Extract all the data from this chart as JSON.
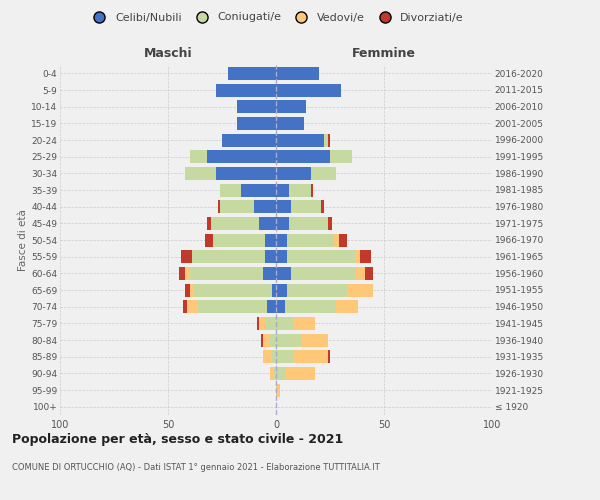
{
  "age_groups": [
    "100+",
    "95-99",
    "90-94",
    "85-89",
    "80-84",
    "75-79",
    "70-74",
    "65-69",
    "60-64",
    "55-59",
    "50-54",
    "45-49",
    "40-44",
    "35-39",
    "30-34",
    "25-29",
    "20-24",
    "15-19",
    "10-14",
    "5-9",
    "0-4"
  ],
  "birth_years": [
    "≤ 1920",
    "1921-1925",
    "1926-1930",
    "1931-1935",
    "1936-1940",
    "1941-1945",
    "1946-1950",
    "1951-1955",
    "1956-1960",
    "1961-1965",
    "1966-1970",
    "1971-1975",
    "1976-1980",
    "1981-1985",
    "1986-1990",
    "1991-1995",
    "1996-2000",
    "2001-2005",
    "2006-2010",
    "2011-2015",
    "2016-2020"
  ],
  "male_celibi": [
    0,
    0,
    0,
    0,
    0,
    0,
    4,
    2,
    6,
    5,
    5,
    8,
    10,
    16,
    28,
    32,
    25,
    18,
    18,
    28,
    22
  ],
  "male_coniugati": [
    0,
    0,
    1,
    2,
    3,
    5,
    32,
    36,
    34,
    34,
    24,
    22,
    16,
    10,
    14,
    8,
    0,
    0,
    0,
    0,
    0
  ],
  "male_vedovi": [
    0,
    0,
    2,
    4,
    3,
    3,
    5,
    2,
    2,
    0,
    0,
    0,
    0,
    0,
    0,
    0,
    0,
    0,
    0,
    0,
    0
  ],
  "male_divorziati": [
    0,
    0,
    0,
    0,
    1,
    1,
    2,
    2,
    3,
    5,
    4,
    2,
    1,
    0,
    0,
    0,
    0,
    0,
    0,
    0,
    0
  ],
  "female_celibi": [
    0,
    0,
    0,
    0,
    0,
    0,
    4,
    5,
    7,
    5,
    5,
    6,
    7,
    6,
    16,
    25,
    22,
    13,
    14,
    30,
    20
  ],
  "female_coniugati": [
    0,
    0,
    4,
    8,
    12,
    8,
    24,
    28,
    30,
    32,
    22,
    18,
    14,
    10,
    12,
    10,
    2,
    0,
    0,
    0,
    0
  ],
  "female_vedovi": [
    0,
    2,
    14,
    16,
    12,
    10,
    10,
    12,
    4,
    2,
    2,
    0,
    0,
    0,
    0,
    0,
    0,
    0,
    0,
    0,
    0
  ],
  "female_divorziati": [
    0,
    0,
    0,
    1,
    0,
    0,
    0,
    0,
    4,
    5,
    4,
    2,
    1,
    1,
    0,
    0,
    1,
    0,
    0,
    0,
    0
  ],
  "color_celibi": "#4472c4",
  "color_coniugati": "#c5d9a0",
  "color_vedovi": "#ffc878",
  "color_divorziati": "#c0392b",
  "title": "Popolazione per età, sesso e stato civile - 2021",
  "subtitle": "COMUNE DI ORTUCCHIO (AQ) - Dati ISTAT 1° gennaio 2021 - Elaborazione TUTTITALIA.IT",
  "ylabel_left": "Fasce di età",
  "xlabel_left": "Maschi",
  "xlabel_right": "Femmine",
  "xlim": 100,
  "bg_color": "#f0f0f0",
  "legend_labels": [
    "Celibi/Nubili",
    "Coniugati/e",
    "Vedovi/e",
    "Divorziati/e"
  ]
}
